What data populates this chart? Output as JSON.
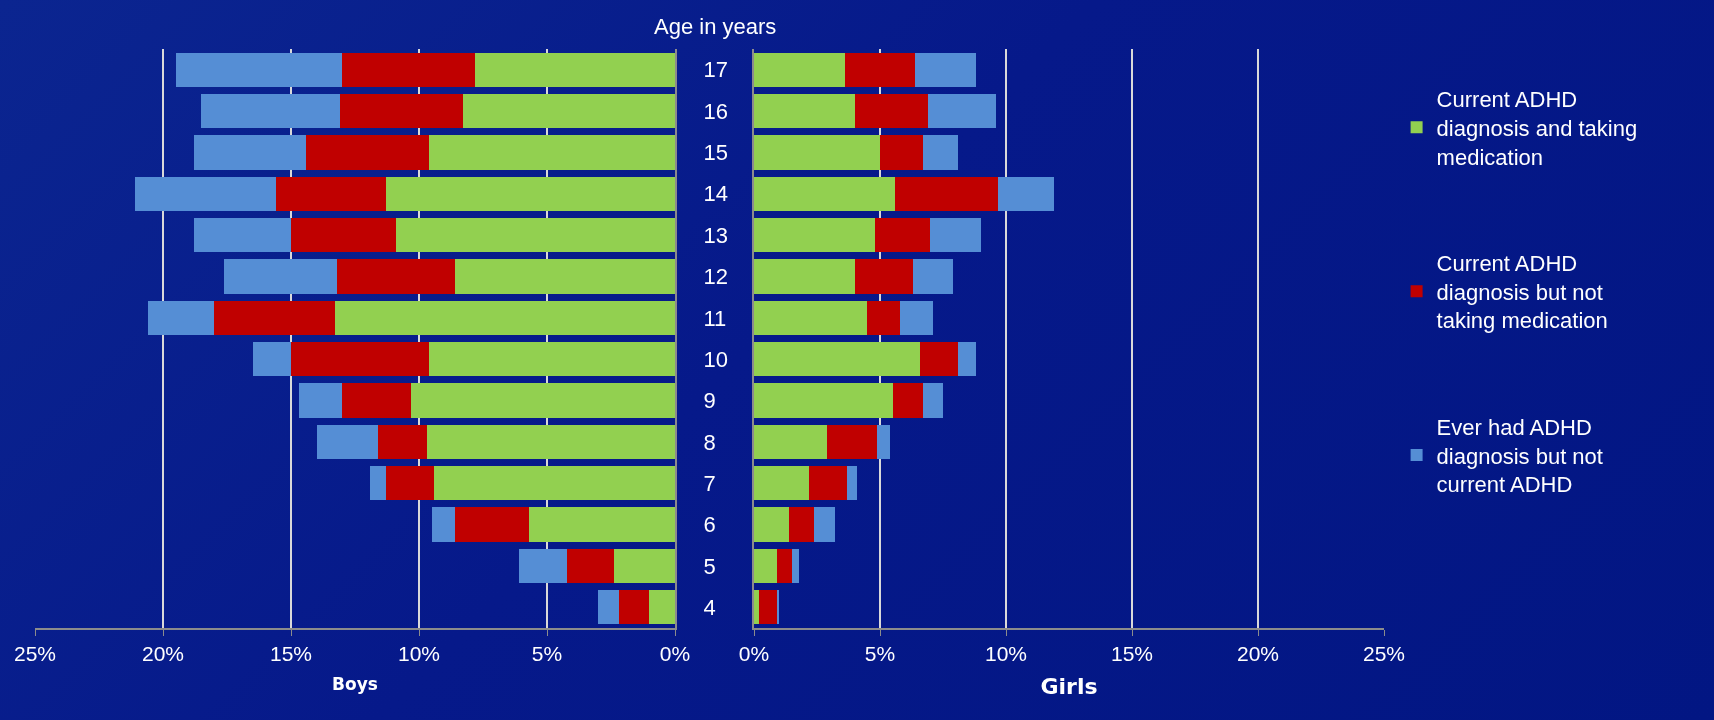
{
  "chart_data": [
    {
      "type": "bar",
      "orientation": "horizontal",
      "stacked": true,
      "ylabel": "Age in years",
      "xlabel": "Boys",
      "categories": [
        "17",
        "16",
        "15",
        "14",
        "13",
        "12",
        "11",
        "10",
        "9",
        "8",
        "7",
        "6",
        "5",
        "4"
      ],
      "series": [
        {
          "color": "#92d050",
          "values": [
            7.8,
            8.3,
            9.6,
            11.3,
            10.9,
            8.6,
            13.3,
            9.6,
            10.3,
            9.7,
            9.4,
            5.7,
            2.4,
            1.0
          ]
        },
        {
          "color": "#c00000",
          "values": [
            5.2,
            4.8,
            4.8,
            4.3,
            4.1,
            4.6,
            4.7,
            5.4,
            2.7,
            1.9,
            1.9,
            2.9,
            1.8,
            1.2
          ]
        },
        {
          "color": "#558ed5",
          "values": [
            6.5,
            5.4,
            4.4,
            5.5,
            3.8,
            4.4,
            2.6,
            1.5,
            1.7,
            2.4,
            0.6,
            0.9,
            1.9,
            0.8
          ]
        }
      ],
      "xlim": [
        25,
        0
      ],
      "xticks": [
        {
          "value": 25,
          "label": "25%"
        },
        {
          "value": 20,
          "label": "20%"
        },
        {
          "value": 15,
          "label": "15%"
        },
        {
          "value": 10,
          "label": "10%"
        },
        {
          "value": 5,
          "label": "5%"
        },
        {
          "value": 0,
          "label": "0%"
        }
      ],
      "grid": "x",
      "legend": false
    },
    {
      "type": "bar",
      "orientation": "horizontal",
      "stacked": true,
      "xlabel": "Girls",
      "categories": [
        "17",
        "16",
        "15",
        "14",
        "13",
        "12",
        "11",
        "10",
        "9",
        "8",
        "7",
        "6",
        "5",
        "4"
      ],
      "series": [
        {
          "name": "Current ADHD diagnosis and taking medication",
          "color": "#92d050",
          "values": [
            3.6,
            4.0,
            5.0,
            5.6,
            4.8,
            4.0,
            4.5,
            6.6,
            5.5,
            2.9,
            2.2,
            1.4,
            0.9,
            0.2
          ]
        },
        {
          "name": "Current ADHD diagnosis but not taking medication",
          "color": "#c00000",
          "values": [
            2.8,
            2.9,
            1.7,
            4.1,
            2.2,
            2.3,
            1.3,
            1.5,
            1.2,
            2.0,
            1.5,
            1.0,
            0.6,
            0.7
          ]
        },
        {
          "name": "Ever had ADHD diagnosis but not current ADHD",
          "color": "#558ed5",
          "values": [
            2.4,
            2.7,
            1.4,
            2.2,
            2.0,
            1.6,
            1.3,
            0.7,
            0.8,
            0.5,
            0.4,
            0.8,
            0.3,
            0.1
          ]
        }
      ],
      "xlim": [
        0,
        25
      ],
      "xticks": [
        {
          "value": 0,
          "label": "0%"
        },
        {
          "value": 5,
          "label": "5%"
        },
        {
          "value": 10,
          "label": "10%"
        },
        {
          "value": 15,
          "label": "15%"
        },
        {
          "value": 20,
          "label": "20%"
        },
        {
          "value": 25,
          "label": "25%"
        }
      ],
      "grid": "x",
      "legend": "right",
      "tick_labels": "x"
    }
  ]
}
